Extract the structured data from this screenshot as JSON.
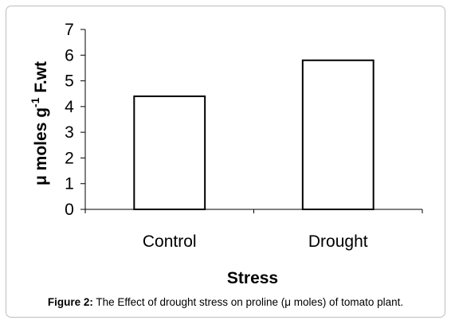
{
  "chart_data": {
    "type": "bar",
    "categories": [
      "Control",
      "Drought"
    ],
    "values": [
      4.4,
      5.8
    ],
    "xlabel": "Stress",
    "ylabel": {
      "main": "μ moles g",
      "sup": "-1",
      "rest": " F.wt"
    },
    "ylim": [
      0,
      7
    ],
    "yticks": [
      0,
      1,
      2,
      3,
      4,
      5,
      6,
      7
    ],
    "grid": false,
    "legend": "none",
    "bar_fill": "#ffffff",
    "bar_stroke": "#000000"
  },
  "caption": {
    "label": "Figure 2:",
    "text": " The Effect of drought stress on proline (μ moles) of tomato plant."
  }
}
